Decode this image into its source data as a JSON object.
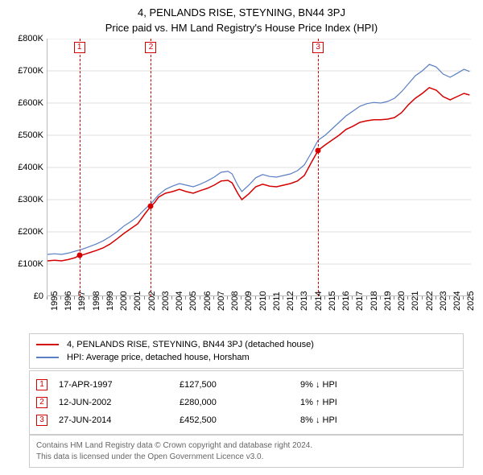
{
  "titles": {
    "line1": "4, PENLANDS RISE, STEYNING, BN44 3PJ",
    "line2": "Price paid vs. HM Land Registry's House Price Index (HPI)"
  },
  "chart": {
    "type": "line",
    "background_color": "#ffffff",
    "grid_color": "#dddddd",
    "axis_color": "#bbbbbb",
    "x_domain_years": [
      1995,
      2025.5
    ],
    "y_domain": [
      0,
      800000
    ],
    "y_ticks": [
      0,
      100000,
      200000,
      300000,
      400000,
      500000,
      600000,
      700000,
      800000
    ],
    "y_tick_labels": [
      "£0",
      "£100K",
      "£200K",
      "£300K",
      "£400K",
      "£500K",
      "£600K",
      "£700K",
      "£800K"
    ],
    "x_ticks": [
      1995,
      1996,
      1997,
      1998,
      1999,
      2000,
      2001,
      2002,
      2003,
      2004,
      2005,
      2006,
      2007,
      2008,
      2009,
      2010,
      2011,
      2012,
      2013,
      2014,
      2015,
      2016,
      2017,
      2018,
      2019,
      2020,
      2021,
      2022,
      2023,
      2024,
      2025
    ],
    "series": {
      "subject": {
        "label": "4, PENLANDS RISE, STEYNING, BN44 3PJ (detached house)",
        "color": "#d40000",
        "line_width": 1.5,
        "data": [
          [
            1995.0,
            110000
          ],
          [
            1995.5,
            112000
          ],
          [
            1996.0,
            110000
          ],
          [
            1996.5,
            114000
          ],
          [
            1997.0,
            120000
          ],
          [
            1997.3,
            127500
          ],
          [
            1997.5,
            128000
          ],
          [
            1998.0,
            135000
          ],
          [
            1998.5,
            142000
          ],
          [
            1999.0,
            150000
          ],
          [
            1999.5,
            162000
          ],
          [
            2000.0,
            178000
          ],
          [
            2000.5,
            195000
          ],
          [
            2001.0,
            210000
          ],
          [
            2001.5,
            225000
          ],
          [
            2002.0,
            255000
          ],
          [
            2002.45,
            280000
          ],
          [
            2002.7,
            290000
          ],
          [
            2003.0,
            308000
          ],
          [
            2003.5,
            320000
          ],
          [
            2004.0,
            325000
          ],
          [
            2004.5,
            332000
          ],
          [
            2005.0,
            325000
          ],
          [
            2005.5,
            320000
          ],
          [
            2006.0,
            328000
          ],
          [
            2006.5,
            335000
          ],
          [
            2007.0,
            345000
          ],
          [
            2007.5,
            358000
          ],
          [
            2008.0,
            360000
          ],
          [
            2008.3,
            352000
          ],
          [
            2008.7,
            320000
          ],
          [
            2009.0,
            300000
          ],
          [
            2009.5,
            318000
          ],
          [
            2010.0,
            340000
          ],
          [
            2010.5,
            348000
          ],
          [
            2011.0,
            342000
          ],
          [
            2011.5,
            340000
          ],
          [
            2012.0,
            345000
          ],
          [
            2012.5,
            350000
          ],
          [
            2013.0,
            358000
          ],
          [
            2013.5,
            375000
          ],
          [
            2014.0,
            415000
          ],
          [
            2014.49,
            452500
          ],
          [
            2014.7,
            460000
          ],
          [
            2015.0,
            470000
          ],
          [
            2015.5,
            485000
          ],
          [
            2016.0,
            500000
          ],
          [
            2016.5,
            518000
          ],
          [
            2017.0,
            528000
          ],
          [
            2017.5,
            540000
          ],
          [
            2018.0,
            545000
          ],
          [
            2018.5,
            548000
          ],
          [
            2019.0,
            548000
          ],
          [
            2019.5,
            550000
          ],
          [
            2020.0,
            555000
          ],
          [
            2020.5,
            570000
          ],
          [
            2021.0,
            595000
          ],
          [
            2021.5,
            615000
          ],
          [
            2022.0,
            630000
          ],
          [
            2022.5,
            648000
          ],
          [
            2023.0,
            640000
          ],
          [
            2023.5,
            620000
          ],
          [
            2024.0,
            610000
          ],
          [
            2024.5,
            620000
          ],
          [
            2025.0,
            630000
          ],
          [
            2025.4,
            625000
          ]
        ]
      },
      "hpi": {
        "label": "HPI: Average price, detached house, Horsham",
        "color": "#5a7fc4",
        "line_width": 1.2,
        "data": [
          [
            1995.0,
            130000
          ],
          [
            1995.5,
            132000
          ],
          [
            1996.0,
            130000
          ],
          [
            1996.5,
            134000
          ],
          [
            1997.0,
            140000
          ],
          [
            1997.5,
            146000
          ],
          [
            1998.0,
            154000
          ],
          [
            1998.5,
            162000
          ],
          [
            1999.0,
            172000
          ],
          [
            1999.5,
            185000
          ],
          [
            2000.0,
            200000
          ],
          [
            2000.5,
            218000
          ],
          [
            2001.0,
            232000
          ],
          [
            2001.5,
            248000
          ],
          [
            2002.0,
            270000
          ],
          [
            2002.5,
            290000
          ],
          [
            2003.0,
            315000
          ],
          [
            2003.5,
            332000
          ],
          [
            2004.0,
            342000
          ],
          [
            2004.5,
            350000
          ],
          [
            2005.0,
            345000
          ],
          [
            2005.5,
            340000
          ],
          [
            2006.0,
            348000
          ],
          [
            2006.5,
            358000
          ],
          [
            2007.0,
            370000
          ],
          [
            2007.5,
            385000
          ],
          [
            2008.0,
            388000
          ],
          [
            2008.3,
            380000
          ],
          [
            2008.7,
            345000
          ],
          [
            2009.0,
            325000
          ],
          [
            2009.5,
            345000
          ],
          [
            2010.0,
            368000
          ],
          [
            2010.5,
            378000
          ],
          [
            2011.0,
            372000
          ],
          [
            2011.5,
            370000
          ],
          [
            2012.0,
            375000
          ],
          [
            2012.5,
            380000
          ],
          [
            2013.0,
            390000
          ],
          [
            2013.5,
            408000
          ],
          [
            2014.0,
            445000
          ],
          [
            2014.5,
            485000
          ],
          [
            2015.0,
            500000
          ],
          [
            2015.5,
            520000
          ],
          [
            2016.0,
            540000
          ],
          [
            2016.5,
            560000
          ],
          [
            2017.0,
            575000
          ],
          [
            2017.5,
            590000
          ],
          [
            2018.0,
            598000
          ],
          [
            2018.5,
            602000
          ],
          [
            2019.0,
            600000
          ],
          [
            2019.5,
            605000
          ],
          [
            2020.0,
            615000
          ],
          [
            2020.5,
            635000
          ],
          [
            2021.0,
            660000
          ],
          [
            2021.5,
            685000
          ],
          [
            2022.0,
            700000
          ],
          [
            2022.5,
            720000
          ],
          [
            2023.0,
            712000
          ],
          [
            2023.5,
            690000
          ],
          [
            2024.0,
            680000
          ],
          [
            2024.5,
            692000
          ],
          [
            2025.0,
            705000
          ],
          [
            2025.4,
            698000
          ]
        ]
      }
    },
    "sale_markers": [
      {
        "n": "1",
        "year": 1997.3,
        "price": 127500,
        "box_color": "#d40000",
        "dot_color": "#d40000",
        "line_color": "#d40000"
      },
      {
        "n": "2",
        "year": 2002.45,
        "price": 280000,
        "box_color": "#d40000",
        "dot_color": "#d40000",
        "line_color": "#d40000"
      },
      {
        "n": "3",
        "year": 2014.49,
        "price": 452500,
        "box_color": "#d40000",
        "dot_color": "#d40000",
        "line_color": "#d40000"
      }
    ]
  },
  "legend": {
    "border_color": "#cccccc"
  },
  "sales_table": {
    "rows": [
      {
        "n": "1",
        "date": "17-APR-1997",
        "price": "£127,500",
        "delta": "9% ↓ HPI",
        "box_color": "#d40000"
      },
      {
        "n": "2",
        "date": "12-JUN-2002",
        "price": "£280,000",
        "delta": "1% ↑ HPI",
        "box_color": "#d40000"
      },
      {
        "n": "3",
        "date": "27-JUN-2014",
        "price": "£452,500",
        "delta": "8% ↓ HPI",
        "box_color": "#d40000"
      }
    ]
  },
  "attribution": {
    "line1": "Contains HM Land Registry data © Crown copyright and database right 2024.",
    "line2": "This data is licensed under the Open Government Licence v3.0."
  }
}
